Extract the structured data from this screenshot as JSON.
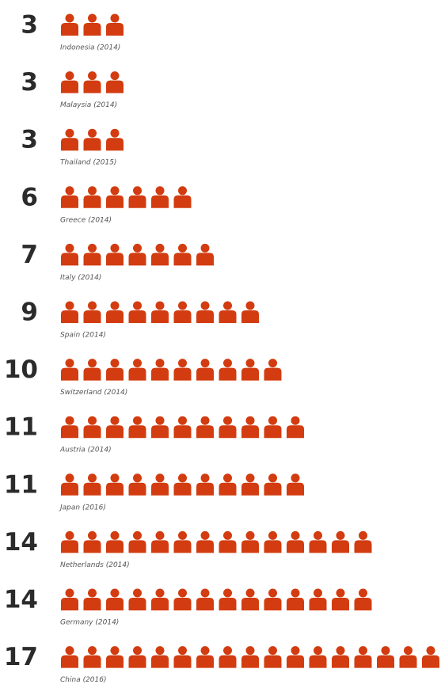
{
  "chart_data": {
    "type": "pictogram",
    "categories": [
      "Indonesia (2014)",
      "Malaysia (2014)",
      "Thailand (2015)",
      "Greece (2014)",
      "Italy (2014)",
      "Spain (2014)",
      "Switzerland (2014)",
      "Austria (2014)",
      "Japan (2016)",
      "Netherlands (2014)",
      "Germany (2014)",
      "China (2016)"
    ],
    "values": [
      3,
      3,
      3,
      6,
      7,
      9,
      10,
      11,
      11,
      14,
      14,
      17
    ],
    "color": "#d23c10"
  }
}
